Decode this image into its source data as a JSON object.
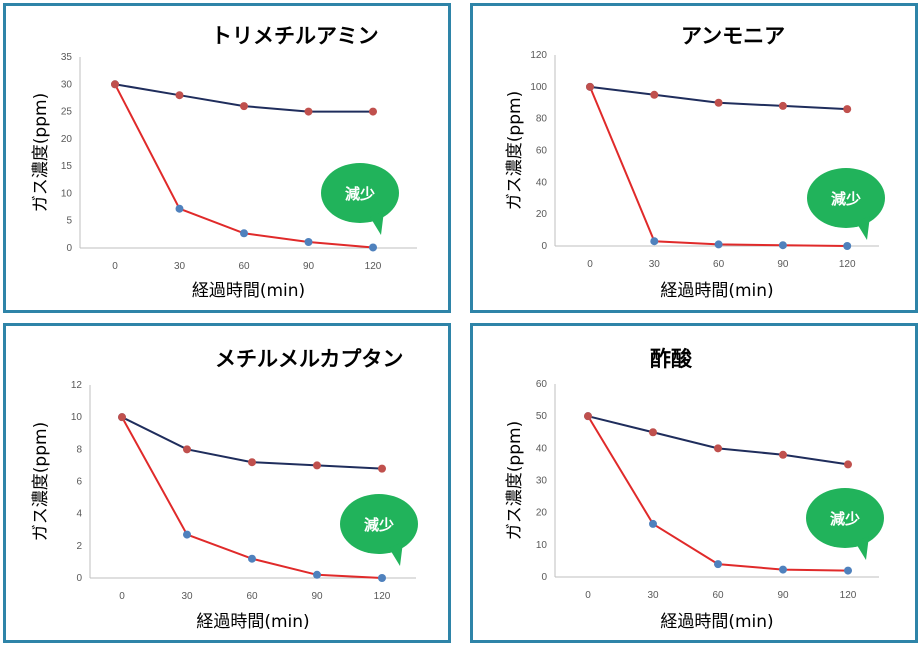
{
  "chart_data": [
    {
      "type": "line",
      "title": "トリメチルアミン",
      "xlabel": "経過時間(min)",
      "ylabel": "ガス濃度(ppm)",
      "categories": [
        "0",
        "30",
        "60",
        "90",
        "120"
      ],
      "ylim": [
        0,
        35
      ],
      "yticks": [
        "0",
        "5",
        "10",
        "15",
        "20",
        "25",
        "30",
        "35"
      ],
      "series": [
        {
          "values": [
            30,
            28,
            26,
            25,
            25
          ]
        },
        {
          "values": [
            30,
            7.2,
            2.7,
            1.1,
            0.1
          ]
        }
      ],
      "annotation": "減少",
      "grid": false,
      "colors": {
        "control": "#1f2d5c",
        "treated": "#e02a2a",
        "marker_control": "#c0504d",
        "marker_treated": "#4f81bd",
        "callout": "#21b35b"
      }
    },
    {
      "type": "line",
      "title": "アンモニア",
      "xlabel": "経過時間(min)",
      "ylabel": "ガス濃度(ppm)",
      "categories": [
        "0",
        "30",
        "60",
        "90",
        "120"
      ],
      "ylim": [
        0,
        120
      ],
      "yticks": [
        "0",
        "20",
        "40",
        "60",
        "80",
        "100",
        "120"
      ],
      "series": [
        {
          "values": [
            100,
            95,
            90,
            88,
            86
          ]
        },
        {
          "values": [
            100,
            3,
            1,
            0.5,
            0
          ]
        }
      ],
      "annotation": "減少",
      "grid": false,
      "colors": {
        "control": "#1f2d5c",
        "treated": "#e02a2a",
        "marker_control": "#c0504d",
        "marker_treated": "#4f81bd",
        "callout": "#21b35b"
      }
    },
    {
      "type": "line",
      "title": "メチルメルカプタン",
      "xlabel": "経過時間(min)",
      "ylabel": "ガス濃度(ppm)",
      "categories": [
        "0",
        "30",
        "60",
        "90",
        "120"
      ],
      "ylim": [
        0,
        12
      ],
      "yticks": [
        "0",
        "2",
        "4",
        "6",
        "8",
        "10",
        "12"
      ],
      "series": [
        {
          "values": [
            10,
            8,
            7.2,
            7,
            6.8
          ]
        },
        {
          "values": [
            10,
            2.7,
            1.2,
            0.2,
            0
          ]
        }
      ],
      "annotation": "減少",
      "grid": false,
      "colors": {
        "control": "#1f2d5c",
        "treated": "#e02a2a",
        "marker_control": "#c0504d",
        "marker_treated": "#4f81bd",
        "callout": "#21b35b"
      }
    },
    {
      "type": "line",
      "title": "酢酸",
      "xlabel": "経過時間(min)",
      "ylabel": "ガス濃度(ppm)",
      "categories": [
        "0",
        "30",
        "60",
        "90",
        "120"
      ],
      "ylim": [
        0,
        60
      ],
      "yticks": [
        "0",
        "10",
        "20",
        "30",
        "40",
        "50",
        "60"
      ],
      "series": [
        {
          "values": [
            50,
            45,
            40,
            38,
            35
          ]
        },
        {
          "values": [
            50,
            16.5,
            4,
            2.3,
            2
          ]
        }
      ],
      "annotation": "減少",
      "grid": false,
      "colors": {
        "control": "#1f2d5c",
        "treated": "#e02a2a",
        "marker_control": "#c0504d",
        "marker_treated": "#4f81bd",
        "callout": "#21b35b"
      }
    }
  ]
}
